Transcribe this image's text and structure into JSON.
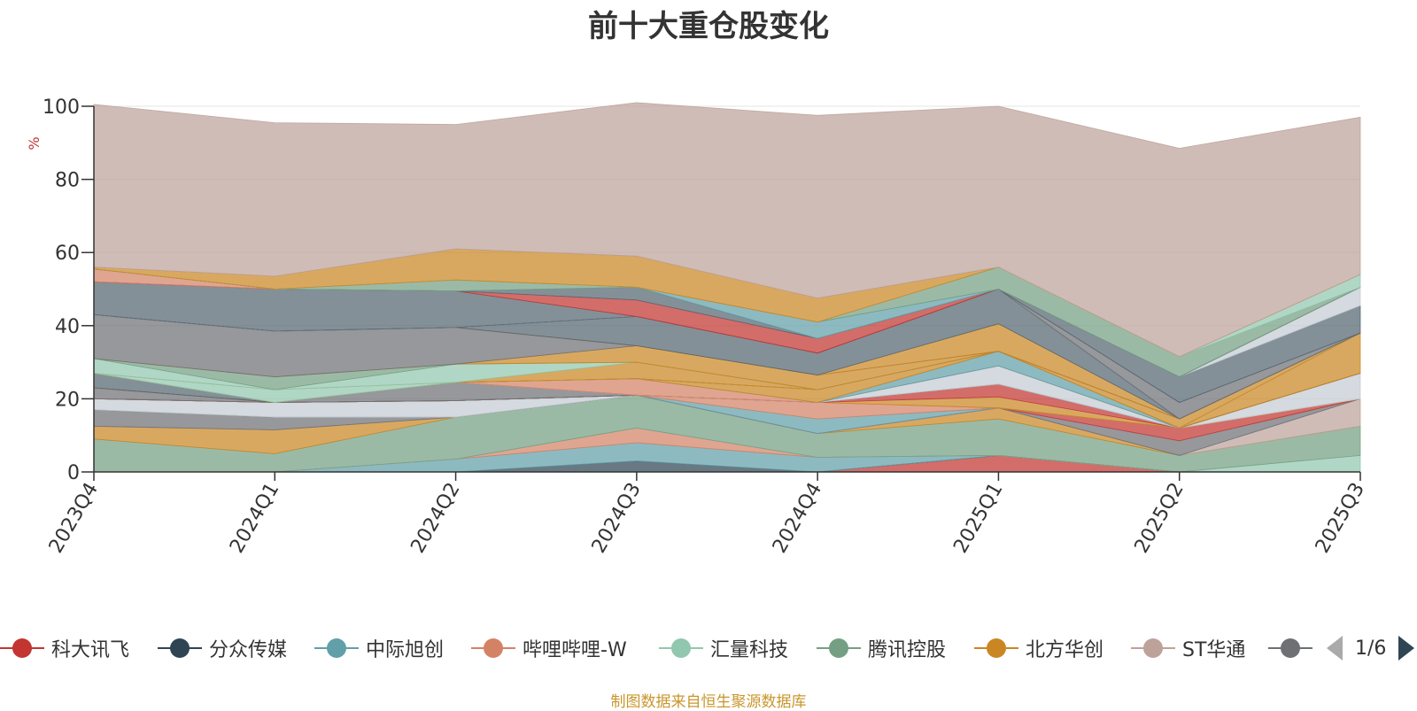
{
  "title": "前十大重仓股变化",
  "footer": "制图数据来自恒生聚源数据库",
  "legend_page": "1/6",
  "chart_data": {
    "type": "area",
    "stacked": true,
    "title": "前十大重仓股变化",
    "ylabel": "%",
    "ylim": [
      0,
      100
    ],
    "yticks": [
      0,
      20,
      40,
      60,
      80,
      100
    ],
    "grid": true,
    "legend_position": "bottom",
    "categories": [
      "2023Q4",
      "2024Q1",
      "2024Q2",
      "2024Q3",
      "2024Q4",
      "2025Q1",
      "2025Q2",
      "2025Q3"
    ],
    "series": [
      {
        "name": "科大讯飞",
        "color": "#c23531",
        "values": [
          0,
          0,
          0,
          0,
          0,
          4.5,
          0,
          0
        ]
      },
      {
        "name": "分众传媒",
        "color": "#2f4554",
        "values": [
          0,
          0,
          0,
          3,
          0,
          0,
          0,
          0
        ]
      },
      {
        "name": "中际旭创",
        "color": "#61a0a8",
        "values": [
          0,
          0,
          3.5,
          5,
          4,
          0,
          0,
          0
        ]
      },
      {
        "name": "哔哩哔哩-W",
        "color": "#d48265",
        "values": [
          0,
          0,
          0,
          4,
          0,
          0,
          0,
          0
        ]
      },
      {
        "name": "汇量科技",
        "color": "#91c7ae",
        "values": [
          0,
          0,
          0,
          0,
          0,
          0,
          0,
          4.5
        ]
      },
      {
        "name": "腾讯控股",
        "color": "#749f83",
        "values": [
          9,
          5,
          11.5,
          9,
          6.5,
          10,
          4.5,
          8
        ]
      },
      {
        "name": "北方华创",
        "color": "#ca8622",
        "values": [
          3.5,
          6.5,
          0,
          0,
          0,
          3,
          0,
          0
        ]
      },
      {
        "name": "ST华通",
        "color": "#bda29a",
        "values": [
          0,
          0,
          0,
          0,
          0,
          0,
          0,
          7.5
        ]
      },
      {
        "color": "#6e7074",
        "values": [
          4.5,
          3.5,
          0,
          0,
          0,
          0,
          4,
          0
        ]
      },
      {
        "color": "#546570",
        "values": [
          0,
          0,
          0,
          0,
          0,
          0,
          0,
          0
        ]
      },
      {
        "color": "#c4ccd3",
        "values": [
          3,
          4,
          4.5,
          0,
          0,
          0,
          0,
          0
        ]
      },
      {
        "color": "#c23531",
        "values": [
          0,
          0,
          0,
          0,
          0,
          0,
          3.5,
          0
        ]
      },
      {
        "color": "#61a0a8",
        "values": [
          0,
          0,
          0,
          0,
          4,
          0,
          0,
          0
        ]
      },
      {
        "color": "#d48265",
        "values": [
          0,
          0,
          0,
          0,
          4.5,
          0,
          0,
          0
        ]
      },
      {
        "color": "#ca8622",
        "values": [
          0,
          0,
          0,
          0,
          0,
          3,
          0,
          0
        ]
      },
      {
        "color": "#c4ccd3",
        "values": [
          0,
          0,
          0,
          0,
          0,
          0,
          0,
          7
        ]
      },
      {
        "color": "#c23531",
        "values": [
          0,
          0,
          0,
          0,
          0,
          3.5,
          0,
          0
        ]
      },
      {
        "color": "#6e7074",
        "values": [
          3,
          0,
          0,
          0,
          0,
          0,
          0,
          0
        ]
      },
      {
        "color": "#6e7074",
        "values": [
          0,
          0,
          5,
          0,
          0,
          0,
          0,
          0
        ]
      },
      {
        "color": "#c4ccd3",
        "values": [
          0,
          0,
          0,
          0,
          0,
          5,
          0,
          0
        ]
      },
      {
        "color": "#d48265",
        "values": [
          0,
          0,
          0,
          4.5,
          0,
          0,
          0,
          0
        ]
      },
      {
        "color": "#61a0a8",
        "values": [
          0,
          0,
          0,
          0,
          0,
          4,
          0,
          0
        ]
      },
      {
        "color": "#ca8622",
        "values": [
          0,
          0,
          0,
          0,
          3.5,
          0,
          0,
          0
        ]
      },
      {
        "color": "#546570",
        "values": [
          4,
          0,
          0,
          0,
          0,
          0,
          0,
          0
        ]
      },
      {
        "color": "#ca8622",
        "values": [
          0,
          0,
          0,
          0,
          0,
          0,
          0,
          11
        ]
      },
      {
        "color": "#91c7ae",
        "values": [
          0,
          3.5,
          0,
          0,
          0,
          0,
          0,
          0
        ]
      },
      {
        "color": "#ca8622",
        "values": [
          0,
          0,
          0,
          4.5,
          0,
          0,
          2.5,
          0
        ]
      },
      {
        "color": "#91c7ae",
        "values": [
          4,
          0,
          5,
          0,
          0,
          0,
          0,
          0
        ]
      },
      {
        "color": "#749f83",
        "values": [
          0,
          3.5,
          0,
          0,
          0,
          0,
          0,
          0
        ]
      },
      {
        "color": "#ca8622",
        "values": [
          0,
          0,
          0,
          4.5,
          4,
          0,
          0,
          0
        ]
      },
      {
        "color": "#6e7074",
        "values": [
          12,
          12.5,
          10,
          0,
          0,
          0,
          0,
          0
        ]
      },
      {
        "color": "#ca8622",
        "values": [
          0,
          0,
          0,
          0,
          0,
          7.5,
          0,
          0
        ]
      },
      {
        "color": "#546570",
        "values": [
          0,
          0,
          0,
          8,
          6,
          9.5,
          0,
          0
        ]
      },
      {
        "color": "#6e7074",
        "values": [
          0,
          0,
          0,
          0,
          0,
          0,
          4.5,
          0
        ]
      },
      {
        "color": "#546570",
        "values": [
          0,
          0,
          0,
          0,
          0,
          0,
          7,
          7.5
        ]
      },
      {
        "color": "#c4ccd3",
        "values": [
          0,
          0,
          0,
          0,
          0,
          0,
          0,
          5
        ]
      },
      {
        "color": "#546570",
        "values": [
          9,
          11.5,
          10,
          0,
          0,
          0,
          0,
          0
        ]
      },
      {
        "color": "#c23531",
        "values": [
          0,
          0,
          0,
          4.5,
          4,
          0,
          0,
          0
        ]
      },
      {
        "color": "#d48265",
        "values": [
          3.5,
          0,
          0,
          0,
          0,
          0,
          0,
          0
        ]
      },
      {
        "color": "#546570",
        "values": [
          0,
          0,
          0,
          3.5,
          0,
          0,
          0,
          0
        ]
      },
      {
        "color": "#61a0a8",
        "values": [
          0,
          0,
          0,
          0,
          4.5,
          0,
          0,
          0
        ]
      },
      {
        "color": "#749f83",
        "values": [
          0,
          0,
          3,
          0,
          0,
          6,
          5.5,
          0
        ]
      },
      {
        "color": "#91c7ae",
        "values": [
          0,
          0,
          0,
          0,
          0,
          0,
          0,
          3.5
        ]
      },
      {
        "color": "#ca8622",
        "values": [
          0.5,
          3.5,
          8.5,
          8.5,
          6.5,
          0,
          0,
          0
        ]
      },
      {
        "color": "#bda29a",
        "values": [
          44.5,
          42,
          34,
          42,
          50,
          44,
          57,
          43
        ]
      }
    ]
  }
}
